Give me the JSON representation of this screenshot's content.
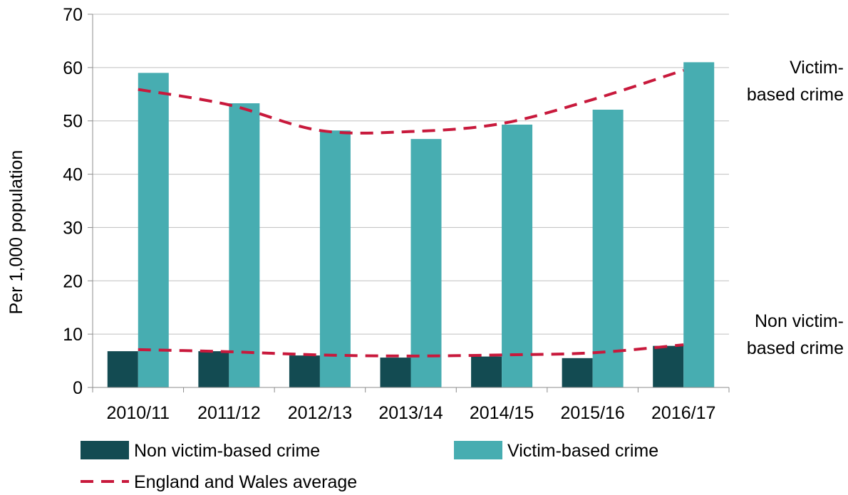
{
  "chart_data": {
    "type": "bar",
    "title": "",
    "xlabel": "",
    "ylabel": "Per 1,000 population",
    "ylim": [
      0,
      70
    ],
    "yticks": [
      0,
      10,
      20,
      30,
      40,
      50,
      60,
      70
    ],
    "grid": true,
    "legend_position": "bottom",
    "categories": [
      "2010/11",
      "2011/12",
      "2012/13",
      "2013/14",
      "2014/15",
      "2015/16",
      "2016/17"
    ],
    "series": [
      {
        "name": "Non victim-based crime",
        "kind": "bar",
        "color": "#134b52",
        "values": [
          6.8,
          6.8,
          6.0,
          5.6,
          5.8,
          5.5,
          7.8
        ]
      },
      {
        "name": "Victim-based crime",
        "kind": "bar",
        "color": "#47adb1",
        "values": [
          59.0,
          53.3,
          48.2,
          46.6,
          49.3,
          52.1,
          61.0
        ]
      },
      {
        "name": "England and Wales average",
        "kind": "dashed-line",
        "color": "#c8193c",
        "segments": [
          {
            "values": [
              55.9,
              53.0,
              48.2,
              48.0,
              49.5,
              54.0,
              59.5
            ]
          },
          {
            "values": [
              7.1,
              6.7,
              6.1,
              5.9,
              6.1,
              6.5,
              8.0
            ]
          }
        ]
      }
    ],
    "annotations": [
      {
        "lines": [
          "Victim-",
          "based crime"
        ]
      },
      {
        "lines": [
          "Non victim-",
          "based crime"
        ]
      }
    ]
  }
}
